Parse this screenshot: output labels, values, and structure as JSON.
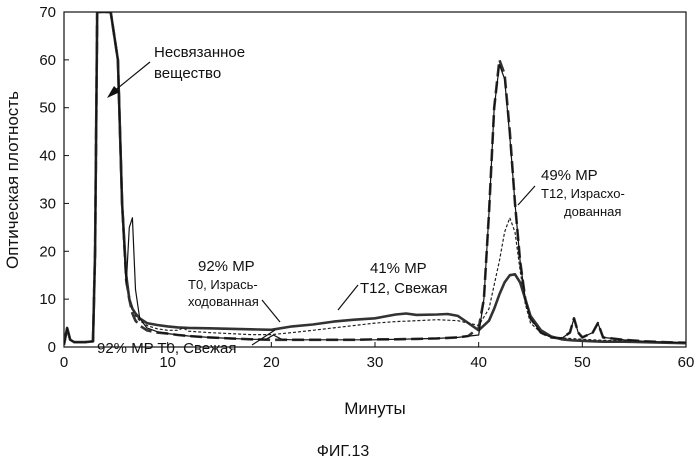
{
  "figure": {
    "caption": "ФИГ.13"
  },
  "chart_data": {
    "type": "line",
    "title": "",
    "xlabel": "Минуты",
    "ylabel": "Оптическая плотность",
    "xlim": [
      0,
      60
    ],
    "ylim": [
      0,
      70
    ],
    "xticks": [
      0,
      10,
      20,
      30,
      40,
      50,
      60
    ],
    "yticks": [
      0,
      10,
      20,
      30,
      40,
      50,
      60,
      70
    ],
    "grid": false,
    "legend": "none",
    "series": [
      {
        "name": "",
        "style": "solid-thick",
        "x": [
          0,
          0.3,
          0.6,
          1,
          2,
          2.8,
          3.0,
          3.2,
          3.6,
          4.5,
          5.2,
          5.6,
          6.0,
          6.3,
          6.6,
          6.9,
          7.3,
          8,
          9,
          10,
          11,
          12,
          14,
          16,
          18,
          20,
          22,
          24,
          26,
          28,
          30,
          32,
          33,
          34,
          36,
          37,
          38,
          39,
          40,
          41,
          41.5,
          42,
          42.5,
          43,
          43.5,
          44,
          44.5,
          45,
          46,
          47,
          48,
          49,
          50,
          51,
          52,
          54,
          56,
          58,
          60
        ],
        "y": [
          0.5,
          4,
          1.5,
          1,
          1,
          1.2,
          20,
          70,
          70,
          70,
          60,
          30,
          15,
          10,
          8,
          7,
          6,
          5,
          4.6,
          4.3,
          4.1,
          4.0,
          3.9,
          3.8,
          3.7,
          3.6,
          4.3,
          4.7,
          5.3,
          5.7,
          6.0,
          6.8,
          7.0,
          6.7,
          6.8,
          6.9,
          6.5,
          5.0,
          3.5,
          5.5,
          8,
          11,
          13.5,
          15,
          15.2,
          13.5,
          10,
          6.5,
          3.5,
          2.2,
          1.6,
          1.4,
          1.3,
          1.2,
          1.1,
          1.1,
          1.0,
          0.9,
          0.8
        ]
      },
      {
        "name": "",
        "style": "dashed-thick",
        "x": [
          0,
          0.3,
          0.6,
          1,
          2,
          2.8,
          3.0,
          3.2,
          3.6,
          4.5,
          5.2,
          5.6,
          6.0,
          6.3,
          6.6,
          6.9,
          7.3,
          8,
          9,
          10,
          11,
          12,
          14,
          16,
          18,
          20,
          22,
          24,
          26,
          28,
          30,
          32,
          34,
          36,
          38,
          39,
          40,
          40.5,
          41,
          41.5,
          42,
          42.5,
          43,
          43.5,
          44,
          44.5,
          45,
          46,
          47,
          48,
          48.8,
          49.2,
          49.6,
          50,
          51,
          51.5,
          52,
          54,
          56,
          58,
          60
        ],
        "y": [
          0.5,
          4,
          1.5,
          1,
          1,
          1.2,
          20,
          70,
          70,
          70,
          60,
          30,
          14,
          10,
          7,
          5.5,
          4.5,
          3.5,
          3.0,
          2.8,
          2.5,
          2.3,
          2.0,
          1.8,
          1.6,
          1.5,
          1.5,
          1.5,
          1.5,
          1.5,
          1.6,
          1.6,
          1.7,
          1.8,
          2.0,
          2.3,
          4,
          10,
          28,
          50,
          60,
          57,
          45,
          30,
          18,
          10,
          6,
          3,
          2,
          1.8,
          3,
          6,
          3,
          2,
          3,
          5,
          2,
          1.5,
          1.2,
          1.0,
          0.9
        ]
      },
      {
        "name": "",
        "style": "dotted-thin",
        "x": [
          0,
          0.3,
          0.6,
          1,
          2,
          2.8,
          3.0,
          3.2,
          3.6,
          4.5,
          5.2,
          5.6,
          6.0,
          6.3,
          6.6,
          6.9,
          7.3,
          8,
          9,
          10,
          11,
          11.5,
          12,
          14,
          16,
          18,
          20,
          22,
          24,
          26,
          28,
          30,
          32,
          34,
          36,
          38,
          40,
          41,
          42,
          42.5,
          43,
          43.5,
          44,
          44.5,
          45,
          46,
          47,
          48,
          50,
          52,
          54,
          56,
          58,
          60
        ],
        "y": [
          0.5,
          4,
          1.5,
          1,
          1,
          1.2,
          20,
          70,
          70,
          70,
          60,
          30,
          15,
          10,
          8,
          6.5,
          5.5,
          4.5,
          3.8,
          3.5,
          3.5,
          4.0,
          3.3,
          3.0,
          2.8,
          2.6,
          2.6,
          3.0,
          3.5,
          4.0,
          4.5,
          5.0,
          5.3,
          5.5,
          5.7,
          5.5,
          4.5,
          8,
          18,
          24,
          27,
          24,
          16,
          9,
          5,
          3,
          2.2,
          1.9,
          1.6,
          1.4,
          1.3,
          1.2,
          1.0,
          0.9
        ]
      },
      {
        "name": "",
        "style": "solid-thin",
        "x": [
          0,
          0.3,
          0.6,
          1,
          2,
          2.8,
          3.0,
          3.2,
          3.6,
          4.5,
          5.2,
          5.6,
          6.0,
          6.3,
          6.6,
          6.9,
          7.3,
          8,
          9,
          10,
          12,
          14,
          16,
          18,
          19.5,
          20.2,
          21,
          22,
          24,
          26,
          28,
          30,
          32,
          34,
          36,
          38,
          40,
          40.5,
          41,
          41.5,
          42,
          42.5,
          43,
          43.5,
          44,
          44.5,
          45,
          46,
          47,
          48,
          48.8,
          49.2,
          49.6,
          50,
          51,
          51.5,
          52,
          54,
          56,
          58,
          60
        ],
        "y": [
          0.5,
          4,
          1.5,
          1,
          1,
          1.2,
          20,
          70,
          70,
          70,
          60,
          30,
          13,
          25,
          27,
          12,
          6,
          4,
          3.2,
          2.8,
          2.3,
          2.0,
          1.8,
          1.6,
          1.6,
          2.5,
          1.6,
          1.5,
          1.5,
          1.5,
          1.5,
          1.5,
          1.6,
          1.7,
          1.8,
          2.0,
          2.5,
          10,
          28,
          50,
          59,
          56,
          44,
          30,
          18,
          10,
          6,
          3,
          2,
          1.8,
          3,
          6,
          3,
          2,
          3,
          5,
          2,
          1.5,
          1.2,
          1.0,
          0.9
        ]
      }
    ],
    "annotations": [
      {
        "lines": [
          "Несвязанное",
          "вещество"
        ]
      },
      {
        "lines": [
          "92% MP",
          "T0, Изрась-",
          "ходованная"
        ]
      },
      {
        "lines": [
          "92% MP T0, Свежая"
        ]
      },
      {
        "lines": [
          "41% MP",
          "T12, Свежая"
        ]
      },
      {
        "lines": [
          "49% MP",
          "T12, Израсхо-",
          "дованная"
        ]
      }
    ]
  }
}
